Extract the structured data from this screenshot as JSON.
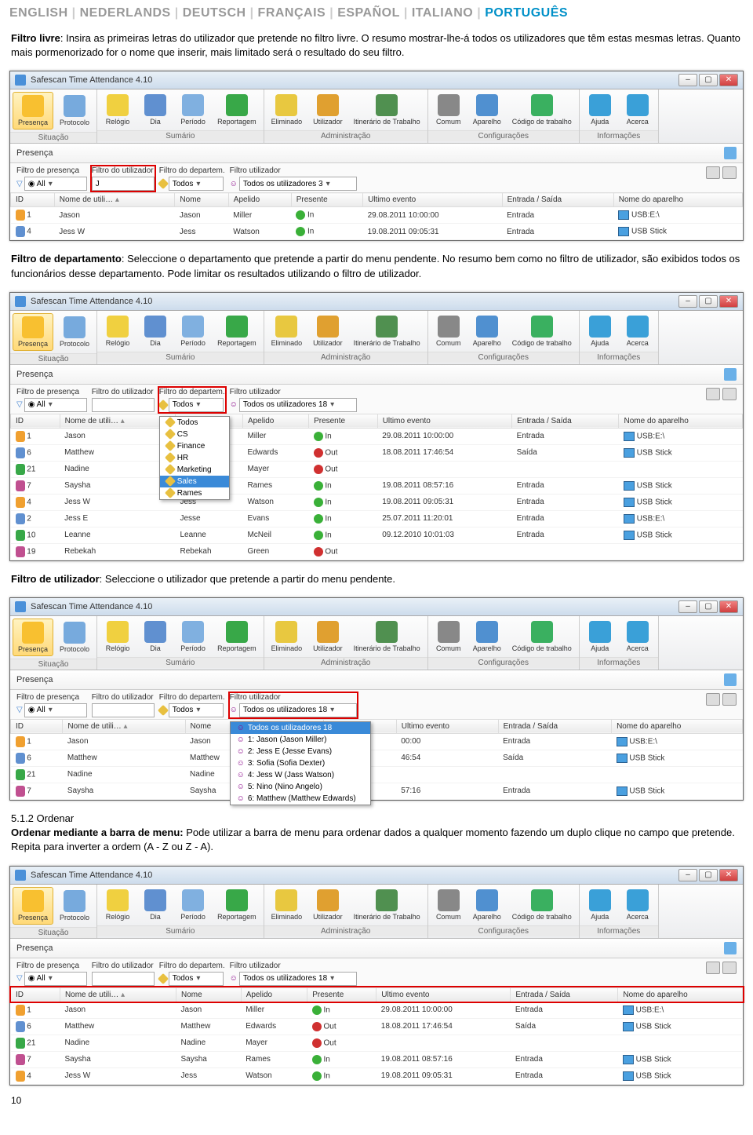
{
  "langs": [
    "ENGLISH",
    "NEDERLANDS",
    "DEUTSCH",
    "FRANÇAIS",
    "ESPAÑOL",
    "ITALIANO",
    "PORTUGUÊS"
  ],
  "lang_active": "PORTUGUÊS",
  "intro": {
    "b1": "Filtro livre",
    "t1": ": Insira as primeiras letras do utilizador que pretende no filtro livre. O resumo mostrar-lhe-á todos os utilizadores que têm estas mesmas letras. Quanto mais pormenorizado for o nome que inserir, mais limitado será o resultado do seu filtro.",
    "b2": "Filtro de departamento",
    "t2": ": Seleccione o departamento que pretende a partir do menu pendente. No resumo bem como no filtro de utilizador, são exibidos todos os funcionários desse departamento. Pode limitar os resultados utilizando o filtro de utilizador.",
    "b3": "Filtro de utilizador",
    "t3": ": Seleccione o utilizador que pretende a partir do menu pendente.",
    "b4": "5.1.2 Ordenar",
    "b5": "Ordenar mediante a barra de menu:",
    "t5": " Pode utilizar a barra de menu para ordenar dados a qualquer momento fazendo um duplo clique no campo que pretende. Repita para inverter a ordem (A - Z ou Z - A)."
  },
  "app_title": "Safescan Time Attendance 4.10",
  "toolbar": [
    {
      "label": "Situação",
      "items": [
        {
          "t": "Presença",
          "c": "#f8c030",
          "sel": true
        },
        {
          "t": "Protocolo",
          "c": "#77aadd"
        }
      ]
    },
    {
      "label": "Sumário",
      "items": [
        {
          "t": "Relógio",
          "c": "#f0d040"
        },
        {
          "t": "Dia",
          "c": "#6090d0"
        },
        {
          "t": "Período",
          "c": "#80b0e0"
        },
        {
          "t": "Reportagem",
          "c": "#38a848"
        }
      ]
    },
    {
      "label": "Administração",
      "items": [
        {
          "t": "Eliminado",
          "c": "#e8c840"
        },
        {
          "t": "Utilizador",
          "c": "#e0a030"
        },
        {
          "t": "Itinerário de Trabalho",
          "c": "#509050"
        }
      ]
    },
    {
      "label": "Configurações",
      "items": [
        {
          "t": "Comum",
          "c": "#888"
        },
        {
          "t": "Aparelho",
          "c": "#5090d0"
        },
        {
          "t": "Código de trabalho",
          "c": "#3ab060"
        }
      ]
    },
    {
      "label": "Informações",
      "items": [
        {
          "t": "Ajuda",
          "c": "#3aa0d8"
        },
        {
          "t": "Acerca",
          "c": "#3aa0d8"
        }
      ]
    }
  ],
  "sub_title": "Presença",
  "filters": {
    "presence": "Filtro de presença",
    "presence_v": "All",
    "user": "Filtro do utilizador",
    "user_v": "J",
    "dept": "Filtro do departem.",
    "dept_v": "Todos",
    "userfilter": "Filtro utilizador",
    "userfilter_v3": "Todos os utilizadores 3",
    "userfilter_v18": "Todos os utilizadores 18"
  },
  "cols": [
    "ID",
    "Nome de utili…",
    "Nome",
    "Apelido",
    "Presente",
    "Ultimo evento",
    "Entrada / Saída",
    "Nome do aparelho"
  ],
  "rows1": [
    {
      "id": "1",
      "nu": "Jason",
      "n": "Jason",
      "a": "Miller",
      "p": "In",
      "pc": "#3ab038",
      "e": "29.08.2011 10:00:00",
      "es": "Entrada",
      "d": "USB:E:\\",
      "dc": "#f0a030"
    },
    {
      "id": "4",
      "nu": "Jess W",
      "n": "Jess",
      "a": "Watson",
      "p": "In",
      "pc": "#3ab038",
      "e": "19.08.2011 09:05:31",
      "es": "Entrada",
      "d": "USB Stick",
      "dc": "#6090d0"
    }
  ],
  "dept_dd": [
    "Todos",
    "CS",
    "Finance",
    "HR",
    "Marketing",
    "Sales"
  ],
  "dept_dd_sel": "Sales",
  "dept_after": "Rames",
  "rows2": [
    {
      "id": "1",
      "nu": "Jason",
      "n": "Jason",
      "a": "Miller",
      "p": "In",
      "pc": "#3ab038",
      "e": "29.08.2011 10:00:00",
      "es": "Entrada",
      "d": "USB:E:\\",
      "dc": "#f0a030"
    },
    {
      "id": "6",
      "nu": "Matthew",
      "n": "Matthew",
      "a": "Edwards",
      "p": "Out",
      "pc": "#d03030",
      "e": "18.08.2011 17:46:54",
      "es": "Saída",
      "d": "USB Stick",
      "dc": "#6090d0"
    },
    {
      "id": "21",
      "nu": "Nadine",
      "n": "Nadine",
      "a": "Mayer",
      "p": "Out",
      "pc": "#d03030",
      "e": "",
      "es": "",
      "d": "",
      "dc": ""
    },
    {
      "id": "7",
      "nu": "Saysha",
      "n": "Saysha",
      "a": "Rames",
      "p": "In",
      "pc": "#3ab038",
      "e": "19.08.2011 08:57:16",
      "es": "Entrada",
      "d": "USB Stick",
      "dc": "#6090d0"
    },
    {
      "id": "4",
      "nu": "Jess W",
      "n": "Jess",
      "a": "Watson",
      "p": "In",
      "pc": "#3ab038",
      "e": "19.08.2011 09:05:31",
      "es": "Entrada",
      "d": "USB Stick",
      "dc": "#6090d0"
    },
    {
      "id": "2",
      "nu": "Jess E",
      "n": "Jesse",
      "a": "Evans",
      "p": "In",
      "pc": "#3ab038",
      "e": "25.07.2011 11:20:01",
      "es": "Entrada",
      "d": "USB:E:\\",
      "dc": "#f0a030"
    },
    {
      "id": "10",
      "nu": "Leanne",
      "n": "Leanne",
      "a": "McNeil",
      "p": "In",
      "pc": "#3ab038",
      "e": "09.12.2010 10:01:03",
      "es": "Entrada",
      "d": "USB Stick",
      "dc": "#6090d0"
    },
    {
      "id": "19",
      "nu": "Rebekah",
      "n": "Rebekah",
      "a": "Green",
      "p": "Out",
      "pc": "#d03030",
      "e": "",
      "es": "",
      "d": "",
      "dc": ""
    }
  ],
  "user_dd": [
    "Todos os utilizadores 18",
    "1: Jason (Jason Miller)",
    "2: Jess E (Jesse Evans)",
    "3: Sofia (Sofia Dexter)",
    "4: Jess W (Jass Watson)",
    "5: Nino (Nino Angelo)",
    "6: Matthew (Matthew Edwards)"
  ],
  "user_dd_sel": "Todos os utilizadores 18",
  "rows3": [
    {
      "id": "1",
      "nu": "Jason",
      "n": "Jason",
      "a": "Miller",
      "p": "In",
      "pc": "#3ab038",
      "e": "00:00",
      "es": "Entrada",
      "d": "USB:E:\\",
      "dc": "#f0a030"
    },
    {
      "id": "6",
      "nu": "Matthew",
      "n": "Matthew",
      "a": "Edwards",
      "p": "",
      "pc": "",
      "e": "46:54",
      "es": "Saída",
      "d": "USB Stick",
      "dc": "#6090d0"
    },
    {
      "id": "21",
      "nu": "Nadine",
      "n": "Nadine",
      "a": "Mayer",
      "p": "",
      "pc": "",
      "e": "",
      "es": "",
      "d": "",
      "dc": ""
    },
    {
      "id": "7",
      "nu": "Saysha",
      "n": "Saysha",
      "a": "Rames",
      "p": "",
      "pc": "",
      "e": "57:16",
      "es": "Entrada",
      "d": "USB Stick",
      "dc": "#6090d0"
    }
  ],
  "rows4": [
    {
      "id": "1",
      "nu": "Jason",
      "n": "Jason",
      "a": "Miller",
      "p": "In",
      "pc": "#3ab038",
      "e": "29.08.2011 10:00:00",
      "es": "Entrada",
      "d": "USB:E:\\",
      "dc": "#f0a030"
    },
    {
      "id": "6",
      "nu": "Matthew",
      "n": "Matthew",
      "a": "Edwards",
      "p": "Out",
      "pc": "#d03030",
      "e": "18.08.2011 17:46:54",
      "es": "Saída",
      "d": "USB Stick",
      "dc": "#6090d0"
    },
    {
      "id": "21",
      "nu": "Nadine",
      "n": "Nadine",
      "a": "Mayer",
      "p": "Out",
      "pc": "#d03030",
      "e": "",
      "es": "",
      "d": "",
      "dc": ""
    },
    {
      "id": "7",
      "nu": "Saysha",
      "n": "Saysha",
      "a": "Rames",
      "p": "In",
      "pc": "#3ab038",
      "e": "19.08.2011 08:57:16",
      "es": "Entrada",
      "d": "USB Stick",
      "dc": "#6090d0"
    },
    {
      "id": "4",
      "nu": "Jess W",
      "n": "Jess",
      "a": "Watson",
      "p": "In",
      "pc": "#3ab038",
      "e": "19.08.2011 09:05:31",
      "es": "Entrada",
      "d": "USB Stick",
      "dc": "#6090d0"
    }
  ],
  "page_num": "10",
  "person_colors": [
    "#f0a030",
    "#6090d0",
    "#38a848",
    "#c05090"
  ]
}
